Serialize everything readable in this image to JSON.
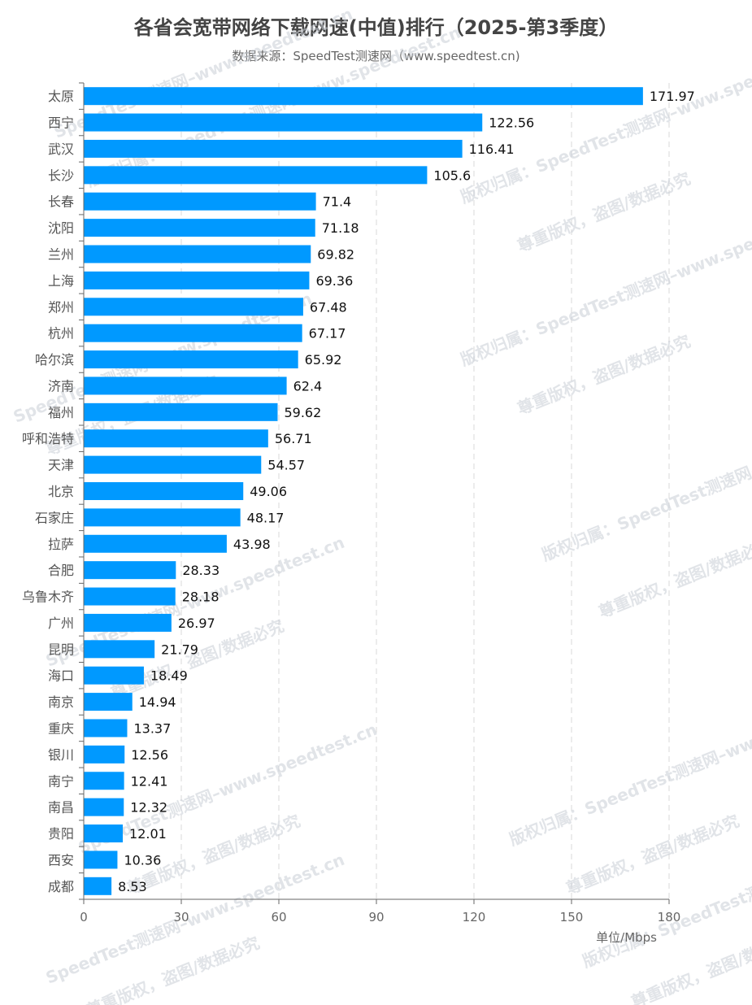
{
  "chart_data": {
    "type": "bar",
    "orientation": "horizontal",
    "title": "各省会宽带网络下载网速(中值)排行（2025-第3季度）",
    "subtitle": "数据来源：SpeedTest测速网（www.speedtest.cn)",
    "xlabel": "单位/Mbps",
    "xlim": [
      0,
      180
    ],
    "xticks": [
      0,
      30,
      60,
      90,
      120,
      150,
      180
    ],
    "grid": true,
    "bar_color": "#0099ff",
    "categories": [
      "太原",
      "西宁",
      "武汉",
      "长沙",
      "长春",
      "沈阳",
      "兰州",
      "上海",
      "郑州",
      "杭州",
      "哈尔滨",
      "济南",
      "福州",
      "呼和浩特",
      "天津",
      "北京",
      "石家庄",
      "拉萨",
      "合肥",
      "乌鲁木齐",
      "广州",
      "昆明",
      "海口",
      "南京",
      "重庆",
      "银川",
      "南宁",
      "南昌",
      "贵阳",
      "西安",
      "成都"
    ],
    "values": [
      171.97,
      122.56,
      116.41,
      105.6,
      71.4,
      71.18,
      69.82,
      69.36,
      67.48,
      67.17,
      65.92,
      62.4,
      59.62,
      56.71,
      54.57,
      49.06,
      48.17,
      43.98,
      28.33,
      28.18,
      26.97,
      21.79,
      18.49,
      14.94,
      13.37,
      12.56,
      12.41,
      12.32,
      12.01,
      10.36,
      8.53
    ],
    "value_labels": [
      "171.97",
      "122.56",
      "116.41",
      "105.6",
      "71.4",
      "71.18",
      "69.82",
      "69.36",
      "67.48",
      "67.17",
      "65.92",
      "62.4",
      "59.62",
      "56.71",
      "54.57",
      "49.06",
      "48.17",
      "43.98",
      "28.33",
      "28.18",
      "26.97",
      "21.79",
      "18.49",
      "14.94",
      "13.37",
      "12.56",
      "12.41",
      "12.32",
      "12.01",
      "10.36",
      "8.53"
    ]
  },
  "watermark": {
    "line1": "SpeedTest测速网–www.speedtest.cn",
    "line2": "版权归属：SpeedTest测速网–www.speedtest.cn",
    "line3": "尊重版权，盗图/数据必究"
  }
}
